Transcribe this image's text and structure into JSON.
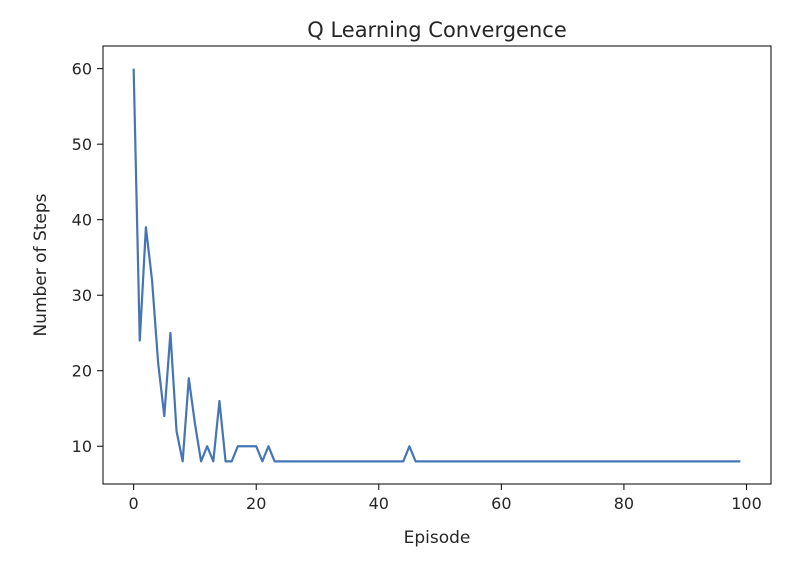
{
  "chart_data": {
    "type": "line",
    "title": "Q Learning Convergence",
    "xlabel": "Episode",
    "ylabel": "Number of Steps",
    "xlim": [
      -5,
      104
    ],
    "ylim": [
      5,
      63
    ],
    "xticks": [
      0,
      20,
      40,
      60,
      80,
      100
    ],
    "yticks": [
      10,
      20,
      30,
      40,
      50,
      60
    ],
    "grid": false,
    "legend": "none",
    "color": "#4575b4",
    "series": [
      {
        "x": [
          0,
          1,
          2,
          3,
          4,
          5,
          6,
          7,
          8,
          9,
          10,
          11,
          12,
          13,
          14,
          15,
          16,
          17,
          18,
          19,
          20,
          21,
          22,
          23,
          24,
          25,
          26,
          27,
          28,
          29,
          30,
          31,
          32,
          33,
          34,
          35,
          36,
          37,
          38,
          39,
          40,
          41,
          42,
          43,
          44,
          45,
          46,
          47,
          48,
          49,
          50,
          51,
          52,
          53,
          54,
          55,
          56,
          57,
          58,
          59,
          60,
          61,
          62,
          63,
          64,
          65,
          66,
          67,
          68,
          69,
          70,
          71,
          72,
          73,
          74,
          75,
          76,
          77,
          78,
          79,
          80,
          81,
          82,
          83,
          84,
          85,
          86,
          87,
          88,
          89,
          90,
          91,
          92,
          93,
          94,
          95,
          96,
          97,
          98,
          99
        ],
        "values": [
          60,
          24,
          39,
          32,
          21,
          14,
          25,
          12,
          8,
          19,
          13,
          8,
          10,
          8,
          16,
          8,
          8,
          10,
          10,
          10,
          10,
          8,
          10,
          8,
          8,
          8,
          8,
          8,
          8,
          8,
          8,
          8,
          8,
          8,
          8,
          8,
          8,
          8,
          8,
          8,
          8,
          8,
          8,
          8,
          8,
          10,
          8,
          8,
          8,
          8,
          8,
          8,
          8,
          8,
          8,
          8,
          8,
          8,
          8,
          8,
          8,
          8,
          8,
          8,
          8,
          8,
          8,
          8,
          8,
          8,
          8,
          8,
          8,
          8,
          8,
          8,
          8,
          8,
          8,
          8,
          8,
          8,
          8,
          8,
          8,
          8,
          8,
          8,
          8,
          8,
          8,
          8,
          8,
          8,
          8,
          8,
          8,
          8,
          8,
          8
        ]
      }
    ]
  }
}
